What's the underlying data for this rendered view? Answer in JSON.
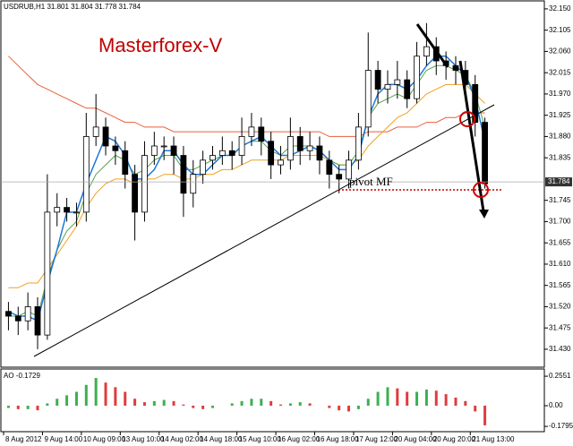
{
  "chart_data": [
    {
      "type": "candlestick",
      "header": "USDRUB,H1  31.801 31.804 31.778 31.784",
      "title": "Masterforex-V",
      "annotation": "pivot MF",
      "categories": [
        "8 Aug 2012",
        null,
        null,
        null,
        "9 Aug 14:00",
        null,
        null,
        null,
        "10 Aug 09:00",
        null,
        null,
        null,
        "13 Aug 10:00",
        null,
        null,
        null,
        "14 Aug 02:00",
        null,
        null,
        null,
        "14 Aug 18:00",
        null,
        null,
        null,
        "15 Aug 10:00",
        null,
        null,
        null,
        "16 Aug 02:00",
        null,
        null,
        null,
        "16 Aug 18:00",
        null,
        null,
        null,
        "17 Aug 12:00",
        null,
        null,
        null,
        "20 Aug 04:00",
        null,
        null,
        null,
        "20 Aug 20:00",
        null,
        null,
        null,
        "21 Aug 13:00",
        null
      ],
      "open": [
        31.51,
        31.5,
        31.49,
        31.52,
        31.46,
        31.72,
        31.73,
        31.72,
        31.72,
        31.88,
        31.9,
        31.86,
        31.85,
        31.8,
        31.72,
        31.84,
        31.86,
        31.86,
        31.84,
        31.76,
        31.8,
        31.83,
        31.84,
        31.85,
        31.84,
        31.88,
        31.9,
        31.87,
        31.82,
        31.83,
        31.88,
        31.85,
        31.86,
        31.83,
        31.8,
        31.79,
        31.83,
        31.9,
        32.02,
        31.98,
        31.99,
        32.0,
        31.96,
        32.05,
        32.07,
        32.04,
        32.03,
        32.02,
        31.99,
        31.91
      ],
      "high": [
        31.53,
        31.52,
        31.55,
        31.54,
        31.8,
        31.76,
        31.75,
        31.74,
        31.93,
        31.97,
        31.92,
        31.88,
        31.87,
        31.82,
        31.87,
        31.89,
        31.88,
        31.88,
        31.86,
        31.83,
        31.85,
        31.86,
        31.88,
        31.87,
        31.92,
        31.93,
        31.92,
        31.89,
        31.86,
        31.92,
        31.9,
        31.89,
        31.88,
        31.85,
        31.82,
        31.85,
        31.93,
        32.1,
        32.04,
        32.02,
        32.04,
        32.02,
        32.08,
        32.12,
        32.09,
        32.06,
        32.05,
        32.04,
        32.01,
        31.92
      ],
      "low": [
        31.47,
        31.46,
        31.47,
        31.43,
        31.45,
        31.69,
        31.7,
        31.69,
        31.7,
        31.86,
        31.84,
        31.82,
        31.77,
        31.66,
        31.7,
        31.82,
        31.83,
        31.8,
        31.71,
        31.73,
        31.78,
        31.81,
        31.82,
        31.81,
        31.82,
        31.86,
        31.84,
        31.79,
        31.8,
        31.81,
        31.82,
        31.83,
        31.8,
        31.77,
        31.76,
        31.77,
        31.81,
        31.88,
        31.95,
        31.95,
        31.96,
        31.94,
        31.95,
        32.03,
        32.01,
        32.0,
        31.99,
        31.96,
        31.88,
        31.77
      ],
      "close": [
        31.5,
        31.49,
        31.52,
        31.46,
        31.72,
        31.73,
        31.72,
        31.72,
        31.88,
        31.9,
        31.86,
        31.85,
        31.8,
        31.72,
        31.84,
        31.86,
        31.86,
        31.84,
        31.76,
        31.8,
        31.83,
        31.84,
        31.85,
        31.84,
        31.88,
        31.9,
        31.87,
        31.82,
        31.83,
        31.88,
        31.85,
        31.86,
        31.83,
        31.8,
        31.79,
        31.83,
        31.9,
        32.02,
        31.98,
        31.99,
        32.0,
        31.96,
        32.05,
        32.07,
        32.04,
        32.03,
        32.02,
        31.99,
        31.91,
        31.78
      ],
      "series": [
        {
          "color": "#e8613a",
          "values": [
            32.05,
            32.03,
            32.01,
            31.99,
            31.98,
            31.97,
            31.96,
            31.95,
            31.94,
            31.94,
            31.93,
            31.92,
            31.91,
            31.91,
            31.9,
            31.9,
            31.9,
            31.89,
            31.89,
            31.89,
            31.89,
            31.89,
            31.89,
            31.89,
            31.89,
            31.89,
            31.89,
            31.89,
            31.89,
            31.89,
            31.89,
            31.89,
            31.89,
            31.88,
            31.88,
            31.88,
            31.88,
            31.89,
            31.89,
            31.89,
            31.9,
            31.9,
            31.9,
            31.91,
            31.91,
            31.92,
            31.92,
            31.93,
            31.93,
            31.93
          ]
        },
        {
          "color": "#f0a020",
          "values": [
            31.56,
            31.56,
            31.57,
            31.57,
            31.6,
            31.63,
            31.66,
            31.69,
            31.73,
            31.76,
            31.78,
            31.79,
            31.79,
            31.78,
            31.79,
            31.79,
            31.8,
            31.8,
            31.79,
            31.79,
            31.8,
            31.8,
            31.81,
            31.81,
            31.82,
            31.83,
            31.83,
            31.83,
            31.83,
            31.84,
            31.84,
            31.84,
            31.84,
            31.83,
            31.82,
            31.82,
            31.83,
            31.86,
            31.88,
            31.9,
            31.92,
            31.93,
            31.95,
            31.97,
            31.98,
            31.99,
            31.99,
            31.99,
            31.97,
            31.95
          ]
        },
        {
          "color": "#5aa050",
          "values": [
            31.5,
            31.5,
            31.51,
            31.5,
            31.58,
            31.64,
            31.68,
            31.7,
            31.76,
            31.8,
            31.82,
            31.84,
            31.83,
            31.8,
            31.81,
            31.83,
            31.84,
            31.84,
            31.81,
            31.81,
            31.82,
            31.83,
            31.84,
            31.84,
            31.86,
            31.87,
            31.87,
            31.85,
            31.84,
            31.86,
            31.86,
            31.86,
            31.85,
            31.83,
            31.82,
            31.82,
            31.85,
            31.92,
            31.95,
            31.96,
            31.97,
            31.96,
            31.99,
            32.02,
            32.03,
            32.03,
            32.02,
            32.01,
            31.97,
            31.9
          ]
        },
        {
          "color": "#1e78d8",
          "values": [
            31.51,
            31.5,
            31.5,
            31.49,
            31.57,
            31.64,
            31.72,
            31.72,
            31.78,
            31.83,
            31.88,
            31.87,
            31.84,
            31.79,
            31.79,
            31.81,
            31.85,
            31.85,
            31.82,
            31.8,
            31.8,
            31.82,
            31.84,
            31.84,
            31.86,
            31.87,
            31.88,
            31.86,
            31.84,
            31.84,
            31.85,
            31.86,
            31.85,
            31.83,
            31.81,
            31.81,
            31.84,
            31.92,
            31.97,
            31.99,
            31.99,
            31.98,
            32.0,
            32.03,
            32.05,
            32.05,
            32.03,
            32.01,
            31.96,
            31.87
          ]
        }
      ],
      "last_price": 31.784,
      "ylim": [
        31.392,
        32.165
      ],
      "yticks": [
        {
          "value": 32.15,
          "label": "32.150"
        },
        {
          "value": 32.105,
          "label": "32.105"
        },
        {
          "value": 32.06,
          "label": "32.060"
        },
        {
          "value": 32.015,
          "label": "32.015"
        },
        {
          "value": 31.97,
          "label": "31.970"
        },
        {
          "value": 31.925,
          "label": "31.925"
        },
        {
          "value": 31.88,
          "label": "31.880"
        },
        {
          "value": 31.835,
          "label": "31.835"
        },
        {
          "value": 31.745,
          "label": "31.745"
        },
        {
          "value": 31.7,
          "label": "31.700"
        },
        {
          "value": 31.655,
          "label": "31.655"
        },
        {
          "value": 31.61,
          "label": "31.610"
        },
        {
          "value": 31.565,
          "label": "31.565"
        },
        {
          "value": 31.52,
          "label": "31.520"
        },
        {
          "value": 31.475,
          "label": "31.475"
        },
        {
          "value": 31.43,
          "label": "31.430"
        }
      ]
    },
    {
      "type": "bar",
      "title": "AO -0.1729",
      "up_color": "#3cb050",
      "down_color": "#e03c3c",
      "values": [
        -0.02,
        -0.03,
        -0.03,
        -0.04,
        0.02,
        0.06,
        0.09,
        0.12,
        0.18,
        0.24,
        0.2,
        0.16,
        0.12,
        0.06,
        0.03,
        0.04,
        0.05,
        0.04,
        0.01,
        -0.02,
        -0.03,
        -0.02,
        0.0,
        0.02,
        0.04,
        0.06,
        0.06,
        0.04,
        0.01,
        0.02,
        0.03,
        0.02,
        0.0,
        -0.02,
        -0.04,
        -0.05,
        -0.03,
        0.06,
        0.12,
        0.16,
        0.15,
        0.12,
        0.12,
        0.14,
        0.13,
        0.1,
        0.07,
        0.04,
        -0.05,
        -0.17
      ],
      "ylim": [
        -0.225,
        0.31
      ],
      "yticks": [
        0.2551,
        {
          "value": 0,
          "label": "0.00"
        },
        -0.1795
      ]
    }
  ]
}
